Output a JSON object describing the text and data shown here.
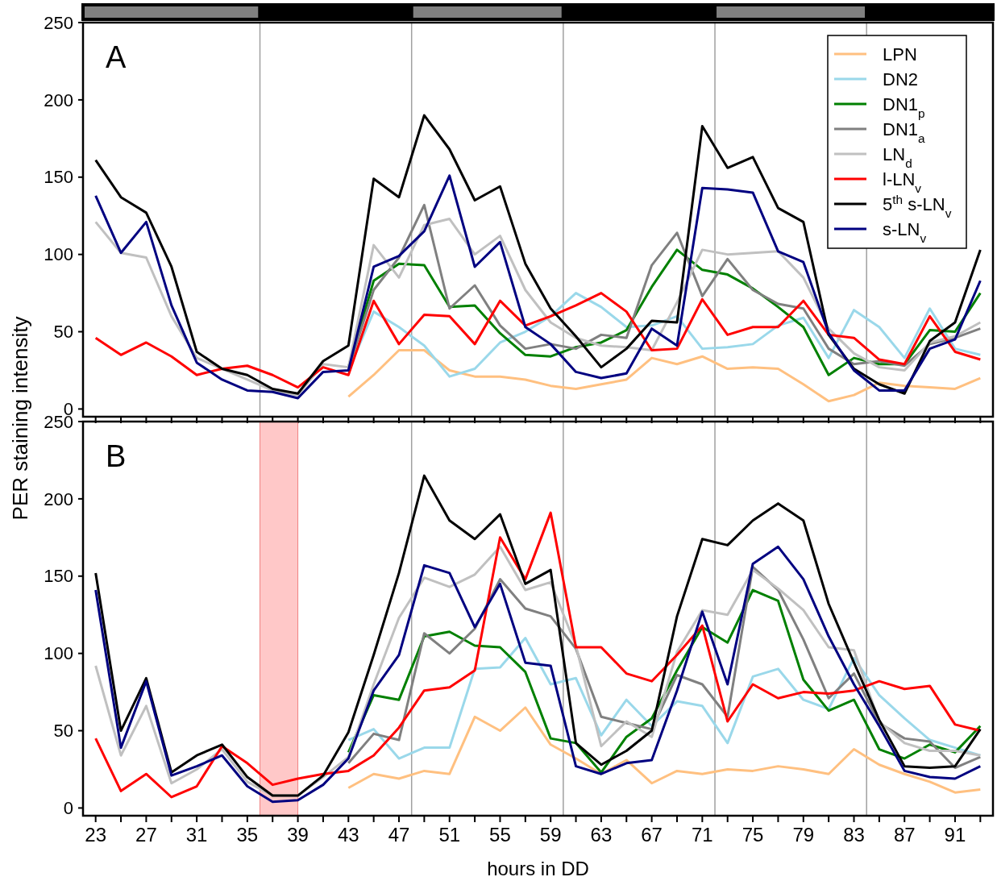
{
  "chart_data": [
    {
      "type": "line",
      "title": "A",
      "ylabel": "PER staining intensity",
      "x": [
        23,
        25,
        27,
        29,
        31,
        33,
        35,
        37,
        39,
        41,
        43,
        45,
        47,
        49,
        51,
        53,
        55,
        57,
        59,
        61,
        63,
        65,
        67,
        69,
        71,
        73,
        75,
        77,
        79,
        81,
        83,
        85,
        87,
        89,
        91,
        93
      ],
      "series": [
        {
          "name": "LPN",
          "color": "#ffc080",
          "values": [
            null,
            null,
            null,
            null,
            null,
            null,
            null,
            null,
            null,
            null,
            8,
            22,
            38,
            38,
            25,
            21,
            21,
            19,
            15,
            13,
            16,
            19,
            33,
            29,
            34,
            26,
            27,
            26,
            16,
            5,
            9,
            17,
            15,
            14,
            13,
            20
          ]
        },
        {
          "name": "DN2",
          "color": "#9ad8ea",
          "values": [
            null,
            null,
            null,
            null,
            null,
            null,
            null,
            null,
            null,
            null,
            25,
            63,
            53,
            41,
            21,
            26,
            43,
            50,
            60,
            75,
            66,
            53,
            54,
            60,
            39,
            40,
            42,
            54,
            59,
            33,
            64,
            53,
            33,
            65,
            39,
            35
          ]
        },
        {
          "name": "DN1$_{p}$",
          "color": "#008000",
          "values": [
            null,
            null,
            null,
            null,
            null,
            null,
            null,
            null,
            null,
            null,
            27,
            83,
            94,
            93,
            66,
            67,
            49,
            35,
            34,
            40,
            43,
            51,
            79,
            103,
            90,
            87,
            78,
            66,
            53,
            22,
            33,
            29,
            29,
            51,
            50,
            75
          ]
        },
        {
          "name": "DN1$_{a}$",
          "color": "#808080",
          "values": [
            null,
            null,
            null,
            null,
            null,
            null,
            null,
            null,
            null,
            null,
            26,
            77,
            98,
            132,
            65,
            80,
            54,
            39,
            42,
            39,
            48,
            46,
            93,
            114,
            73,
            97,
            77,
            68,
            65,
            39,
            29,
            31,
            28,
            42,
            46,
            52
          ]
        },
        {
          "name": "LN$_{d}$",
          "color": "#c0c0c0",
          "values": [
            121,
            101,
            98,
            60,
            33,
            26,
            19,
            12,
            9,
            29,
            27,
            106,
            85,
            119,
            123,
            100,
            112,
            77,
            56,
            46,
            41,
            40,
            38,
            69,
            103,
            100,
            101,
            102,
            85,
            52,
            36,
            27,
            25,
            43,
            47,
            56
          ]
        },
        {
          "name": "l-LN$_{v}$",
          "color": "#ff0000",
          "values": [
            46,
            35,
            43,
            34,
            22,
            26,
            28,
            22,
            14,
            27,
            22,
            70,
            42,
            61,
            60,
            42,
            70,
            54,
            60,
            67,
            75,
            63,
            38,
            39,
            71,
            48,
            53,
            53,
            70,
            48,
            46,
            32,
            29,
            60,
            37,
            32
          ]
        },
        {
          "name": "5$^{th}$ s-LN$_{v}$",
          "color": "#000000",
          "values": [
            161,
            137,
            127,
            92,
            37,
            26,
            22,
            13,
            10,
            31,
            41,
            149,
            137,
            190,
            168,
            135,
            144,
            94,
            65,
            47,
            27,
            39,
            57,
            56,
            183,
            156,
            163,
            130,
            121,
            48,
            26,
            16,
            10,
            44,
            56,
            103
          ]
        },
        {
          "name": "s-LN$_{v}$",
          "color": "#000080",
          "values": [
            138,
            101,
            121,
            67,
            30,
            19,
            12,
            11,
            7,
            24,
            25,
            92,
            99,
            115,
            151,
            92,
            108,
            53,
            42,
            24,
            20,
            23,
            52,
            41,
            143,
            142,
            140,
            102,
            95,
            49,
            25,
            12,
            12,
            39,
            45,
            83
          ]
        }
      ],
      "xlim": [
        22,
        94
      ],
      "ylim": [
        -5,
        250
      ],
      "yticks": [
        0,
        50,
        100,
        150,
        200,
        250
      ],
      "xticks": [
        23,
        {
          "value": 25,
          "label": null
        },
        27,
        {
          "value": 29,
          "label": null
        },
        31,
        {
          "value": 33,
          "label": null
        },
        35,
        {
          "value": 37,
          "label": null
        },
        39,
        {
          "value": 41,
          "label": null
        },
        43,
        {
          "value": 45,
          "label": null
        },
        47,
        {
          "value": 49,
          "label": null
        },
        51,
        {
          "value": 53,
          "label": null
        },
        55,
        {
          "value": 57,
          "label": null
        },
        59,
        {
          "value": 61,
          "label": null
        },
        63,
        {
          "value": 65,
          "label": null
        },
        67,
        {
          "value": 69,
          "label": null
        },
        71,
        {
          "value": 73,
          "label": null
        },
        75,
        {
          "value": 77,
          "label": null
        },
        79,
        {
          "value": 81,
          "label": null
        },
        83,
        {
          "value": 85,
          "label": null
        },
        87,
        {
          "value": 89,
          "label": null
        },
        91,
        {
          "value": 93,
          "label": null
        }
      ],
      "tick_labels": "y",
      "legend": "top right",
      "grid": false,
      "marker": "none",
      "line_style": "solid",
      "ref_lines": [
        {
          "axis": "x",
          "value": 36,
          "color": "#a0a0a0"
        },
        {
          "axis": "x",
          "value": 48,
          "color": "#a0a0a0"
        },
        {
          "axis": "x",
          "value": 60,
          "color": "#a0a0a0"
        },
        {
          "axis": "x",
          "value": 72,
          "color": "#a0a0a0"
        },
        {
          "axis": "x",
          "value": 84,
          "color": "#a0a0a0"
        }
      ]
    },
    {
      "type": "line",
      "title": "B",
      "xlabel": "hours in DD",
      "x": [
        23,
        25,
        27,
        29,
        31,
        33,
        35,
        37,
        39,
        41,
        43,
        45,
        47,
        49,
        51,
        53,
        55,
        57,
        59,
        61,
        63,
        65,
        67,
        69,
        71,
        73,
        75,
        77,
        79,
        81,
        83,
        85,
        87,
        89,
        91,
        93
      ],
      "series": [
        {
          "color": "#ffc080",
          "values": [
            null,
            null,
            null,
            null,
            null,
            null,
            null,
            null,
            null,
            null,
            13,
            22,
            19,
            24,
            22,
            59,
            50,
            65,
            41,
            32,
            22,
            31,
            16,
            24,
            22,
            25,
            24,
            27,
            25,
            22,
            38,
            28,
            22,
            17,
            10,
            12
          ]
        },
        {
          "color": "#9ad8ea",
          "values": [
            null,
            null,
            null,
            null,
            null,
            null,
            null,
            null,
            null,
            null,
            44,
            51,
            32,
            39,
            39,
            90,
            91,
            110,
            80,
            84,
            47,
            70,
            53,
            69,
            66,
            42,
            85,
            90,
            70,
            64,
            97,
            73,
            58,
            44,
            39,
            34
          ]
        },
        {
          "color": "#008000",
          "values": [
            null,
            null,
            null,
            null,
            null,
            null,
            null,
            null,
            null,
            null,
            36,
            73,
            70,
            111,
            114,
            105,
            104,
            88,
            45,
            42,
            23,
            46,
            58,
            89,
            117,
            107,
            141,
            134,
            83,
            63,
            70,
            38,
            32,
            41,
            36,
            53
          ]
        },
        {
          "color": "#808080",
          "values": [
            null,
            null,
            null,
            null,
            null,
            null,
            null,
            null,
            null,
            null,
            29,
            48,
            44,
            113,
            100,
            116,
            148,
            129,
            124,
            103,
            59,
            55,
            51,
            86,
            80,
            59,
            156,
            141,
            109,
            71,
            87,
            55,
            45,
            43,
            26,
            33
          ]
        },
        {
          "color": "#c0c0c0",
          "values": [
            92,
            34,
            66,
            16,
            25,
            38,
            17,
            8,
            8,
            20,
            33,
            80,
            123,
            149,
            143,
            151,
            169,
            141,
            146,
            105,
            40,
            56,
            46,
            101,
            128,
            125,
            154,
            142,
            128,
            104,
            102,
            56,
            42,
            37,
            37,
            34
          ]
        },
        {
          "color": "#ff0000",
          "values": [
            45,
            11,
            22,
            7,
            14,
            40,
            29,
            15,
            19,
            22,
            24,
            34,
            52,
            76,
            78,
            89,
            175,
            148,
            191,
            104,
            104,
            87,
            82,
            99,
            118,
            56,
            80,
            71,
            75,
            74,
            76,
            82,
            77,
            79,
            54,
            50
          ]
        },
        {
          "color": "#000000",
          "values": [
            152,
            50,
            84,
            23,
            34,
            41,
            20,
            8,
            8,
            21,
            49,
            99,
            152,
            215,
            186,
            174,
            190,
            145,
            154,
            42,
            28,
            37,
            50,
            124,
            174,
            170,
            186,
            197,
            186,
            132,
            94,
            57,
            27,
            26,
            27,
            51
          ]
        },
        {
          "color": "#000080",
          "values": [
            141,
            39,
            82,
            21,
            27,
            34,
            14,
            4,
            5,
            15,
            32,
            76,
            99,
            157,
            152,
            117,
            145,
            94,
            92,
            27,
            22,
            29,
            31,
            76,
            127,
            80,
            158,
            169,
            148,
            111,
            80,
            53,
            24,
            20,
            19,
            27
          ]
        }
      ],
      "xlim": [
        22,
        94
      ],
      "ylim": [
        -5,
        250
      ],
      "yticks": [
        0,
        50,
        100,
        150,
        200,
        250
      ],
      "xticks": [
        23,
        {
          "value": 25,
          "label": null
        },
        27,
        {
          "value": 29,
          "label": null
        },
        31,
        {
          "value": 33,
          "label": null
        },
        35,
        {
          "value": 37,
          "label": null
        },
        39,
        {
          "value": 41,
          "label": null
        },
        43,
        {
          "value": 45,
          "label": null
        },
        47,
        {
          "value": 49,
          "label": null
        },
        51,
        {
          "value": 53,
          "label": null
        },
        55,
        {
          "value": 57,
          "label": null
        },
        59,
        {
          "value": 61,
          "label": null
        },
        63,
        {
          "value": 65,
          "label": null
        },
        67,
        {
          "value": 69,
          "label": null
        },
        71,
        {
          "value": 73,
          "label": null
        },
        75,
        {
          "value": 77,
          "label": null
        },
        79,
        {
          "value": 81,
          "label": null
        },
        83,
        {
          "value": 85,
          "label": null
        },
        87,
        {
          "value": 89,
          "label": null
        },
        91,
        {
          "value": 93,
          "label": null
        }
      ],
      "grid": false,
      "marker": "none",
      "line_style": "solid",
      "ref_lines": [
        {
          "axis": "x",
          "value": 48,
          "color": "#a0a0a0"
        },
        {
          "axis": "x",
          "value": 60,
          "color": "#a0a0a0"
        },
        {
          "axis": "x",
          "value": 72,
          "color": "#a0a0a0"
        },
        {
          "axis": "x",
          "value": 84,
          "color": "#a0a0a0"
        }
      ],
      "bands": [
        {
          "axis": "x",
          "from": 36,
          "to": 39,
          "color": "#ffc8c8"
        }
      ]
    }
  ]
}
